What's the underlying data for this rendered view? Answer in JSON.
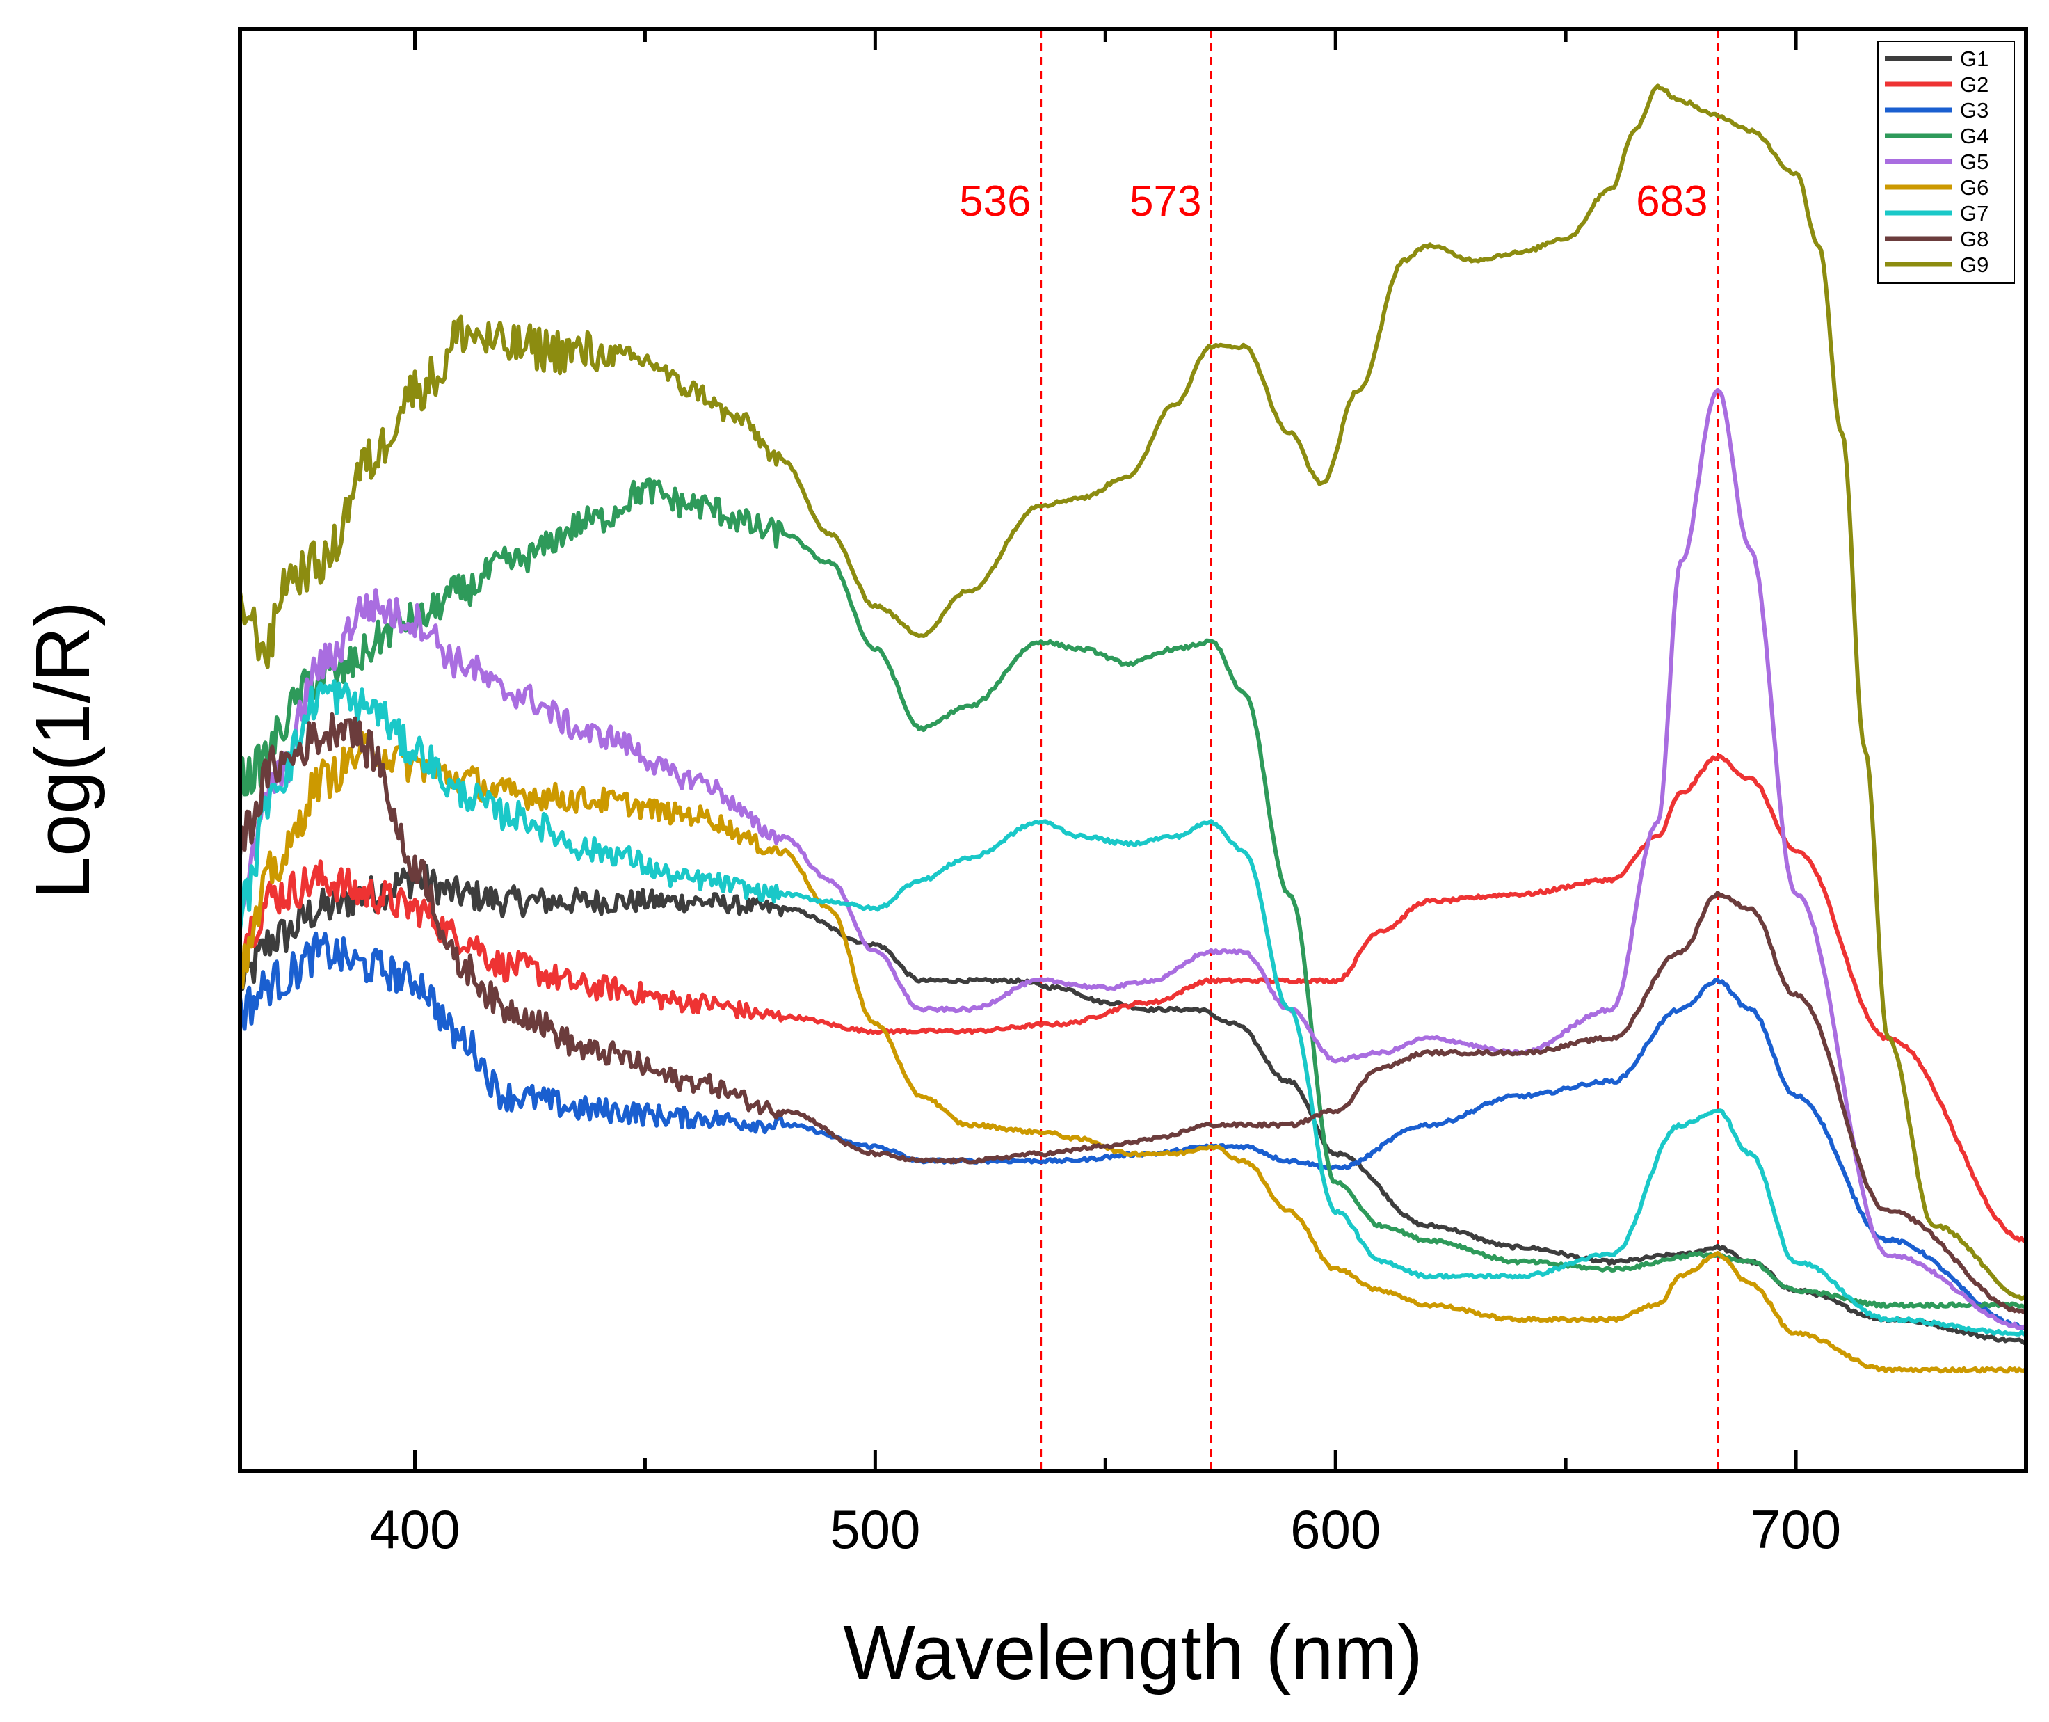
{
  "chart_data": {
    "type": "line",
    "title": "",
    "xlabel": "Wavelength (nm)",
    "ylabel": "Log(1/R)",
    "xlim": [
      362,
      750
    ],
    "ylim": [
      0,
      100
    ],
    "x_ticks": [
      400,
      500,
      600,
      700
    ],
    "x_tick_labels": [
      "400",
      "500",
      "600",
      "700"
    ],
    "y_tick_labels": [],
    "grid": false,
    "legend_position": "top-right",
    "reference_lines": [
      {
        "x": 536,
        "label": "536",
        "color": "#ff0000",
        "style": "dashed"
      },
      {
        "x": 573,
        "label": "573",
        "color": "#ff0000",
        "style": "dashed"
      },
      {
        "x": 683,
        "label": "683",
        "color": "#ff0000",
        "style": "dashed"
      }
    ],
    "series": [
      {
        "name": "G1",
        "color": "#3d3d3d",
        "x": [
          362,
          370,
          380,
          390,
          400,
          410,
          420,
          440,
          460,
          480,
          500,
          510,
          520,
          530,
          540,
          550,
          560,
          570,
          578,
          590,
          600,
          620,
          640,
          660,
          675,
          683,
          690,
          700,
          720,
          750
        ],
        "y": [
          34,
          37,
          39,
          40,
          41,
          40,
          39.5,
          39.5,
          39.5,
          39,
          36.5,
          34,
          34,
          34,
          33.5,
          32.5,
          32,
          32,
          31,
          27,
          22,
          17,
          15.5,
          14.5,
          15,
          15.5,
          14.5,
          12.5,
          10.5,
          9
        ]
      },
      {
        "name": "G2",
        "color": "#ee3333",
        "x": [
          362,
          370,
          380,
          390,
          400,
          410,
          420,
          440,
          460,
          480,
          500,
          510,
          520,
          540,
          560,
          573,
          580,
          590,
          600,
          610,
          620,
          640,
          660,
          670,
          675,
          683,
          690,
          700,
          720,
          750
        ],
        "y": [
          37,
          40,
          41,
          40,
          39,
          37,
          35,
          33.5,
          32.5,
          31.5,
          30.5,
          30.5,
          30.5,
          31,
          32.5,
          34,
          34,
          34,
          34,
          37.5,
          39.5,
          40,
          41,
          44,
          47,
          49.5,
          48,
          43,
          30,
          16
        ]
      },
      {
        "name": "G3",
        "color": "#1a5fd0",
        "x": [
          362,
          370,
          380,
          390,
          400,
          410,
          420,
          440,
          460,
          480,
          500,
          510,
          520,
          540,
          560,
          573,
          580,
          590,
          600,
          620,
          640,
          660,
          675,
          683,
          690,
          700,
          720,
          750
        ],
        "y": [
          32,
          34,
          36,
          35,
          34,
          30,
          26,
          25,
          24.5,
          24,
          22.5,
          21.5,
          21.5,
          21.5,
          22,
          22.5,
          22.5,
          21.5,
          21,
          24,
          26,
          27,
          32,
          34,
          32,
          26,
          16,
          10
        ]
      },
      {
        "name": "G4",
        "color": "#2e9a5a",
        "x": [
          362,
          380,
          400,
          410,
          420,
          440,
          450,
          460,
          480,
          490,
          500,
          510,
          520,
          536,
          545,
          555,
          565,
          573,
          580,
          590,
          600,
          610,
          620,
          640,
          660,
          680,
          690,
          700,
          720,
          750
        ],
        "y": [
          48,
          55,
          59,
          61,
          63,
          66,
          68,
          67,
          65,
          63,
          57,
          51.5,
          53,
          57.5,
          57,
          56,
          57,
          57.5,
          54,
          40,
          20,
          17,
          16,
          14.5,
          14,
          15,
          14.5,
          12.5,
          11.5,
          11.5
        ]
      },
      {
        "name": "G5",
        "color": "#a96de0",
        "x": [
          362,
          370,
          380,
          390,
          400,
          410,
          420,
          440,
          460,
          480,
          490,
          500,
          510,
          520,
          536,
          550,
          560,
          573,
          580,
          590,
          600,
          610,
          620,
          640,
          660,
          670,
          675,
          683,
          690,
          700,
          720,
          750
        ],
        "y": [
          40,
          48,
          56,
          60,
          59,
          56,
          54,
          51,
          48,
          44,
          41,
          36,
          32,
          32,
          34,
          33.5,
          34,
          36,
          36,
          32,
          28.5,
          29,
          30,
          29,
          32,
          45,
          63,
          75,
          64,
          40,
          15,
          10
        ]
      },
      {
        "name": "G6",
        "color": "#cc9900",
        "x": [
          362,
          370,
          380,
          390,
          400,
          410,
          420,
          440,
          460,
          480,
          490,
          500,
          510,
          520,
          536,
          545,
          555,
          565,
          573,
          580,
          590,
          600,
          610,
          620,
          640,
          660,
          670,
          675,
          683,
          690,
          700,
          720,
          750
        ],
        "y": [
          35,
          42,
          48,
          50,
          49,
          48,
          47,
          46.5,
          45.5,
          43,
          39,
          31,
          26,
          24,
          23.5,
          23,
          22,
          22,
          22.5,
          21.5,
          18,
          14,
          12.5,
          11.5,
          10.5,
          10.5,
          11.5,
          13.5,
          15,
          13,
          9.5,
          7,
          7
        ]
      },
      {
        "name": "G7",
        "color": "#1ac8c8",
        "x": [
          362,
          370,
          380,
          390,
          400,
          410,
          420,
          440,
          460,
          480,
          490,
          500,
          510,
          520,
          536,
          545,
          555,
          565,
          573,
          580,
          590,
          600,
          610,
          620,
          640,
          660,
          675,
          683,
          690,
          700,
          720,
          750
        ],
        "y": [
          39,
          48,
          54,
          53,
          50,
          47,
          45.5,
          43,
          41,
          40,
          39.5,
          39,
          41,
          42.5,
          45,
          44,
          43.5,
          44,
          45,
          43,
          32,
          18,
          14.5,
          13.5,
          13.5,
          15,
          24,
          25,
          22,
          14.5,
          10.5,
          9.5
        ]
      },
      {
        "name": "G8",
        "color": "#6b3c3c",
        "x": [
          362,
          370,
          380,
          385,
          390,
          400,
          410,
          420,
          440,
          460,
          480,
          500,
          510,
          520,
          536,
          550,
          560,
          573,
          580,
          590,
          600,
          610,
          620,
          640,
          660,
          675,
          683,
          690,
          700,
          720,
          750
        ],
        "y": [
          44,
          49,
          51,
          52,
          50,
          42,
          35,
          32,
          29,
          27,
          25,
          22,
          21.5,
          21.5,
          22,
          22.5,
          23,
          24,
          24,
          24,
          25,
          28,
          29,
          29,
          30,
          36,
          40,
          39,
          33,
          18,
          11
        ]
      },
      {
        "name": "G9",
        "color": "#8c8c10",
        "x": [
          362,
          368,
          372,
          380,
          390,
          400,
          405,
          410,
          420,
          440,
          450,
          460,
          470,
          480,
          490,
          500,
          510,
          520,
          536,
          545,
          555,
          565,
          573,
          580,
          590,
          597,
          605,
          615,
          620,
          630,
          640,
          650,
          660,
          665,
          670,
          675,
          683,
          690,
          700,
          705,
          710,
          715,
          720,
          730,
          750
        ],
        "y": [
          60,
          57,
          62,
          63,
          70,
          75,
          76,
          79,
          78,
          77.5,
          77,
          75,
          73,
          70,
          65,
          60,
          58,
          61,
          67,
          67.5,
          69,
          74,
          78,
          78,
          72,
          68.5,
          75,
          84,
          85,
          84,
          84.5,
          85.5,
          89,
          93,
          96,
          95,
          94,
          93,
          90,
          85,
          72,
          50,
          30,
          17,
          12
        ]
      }
    ],
    "legend": [
      "G1",
      "G2",
      "G3",
      "G4",
      "G5",
      "G6",
      "G7",
      "G8",
      "G9"
    ]
  }
}
